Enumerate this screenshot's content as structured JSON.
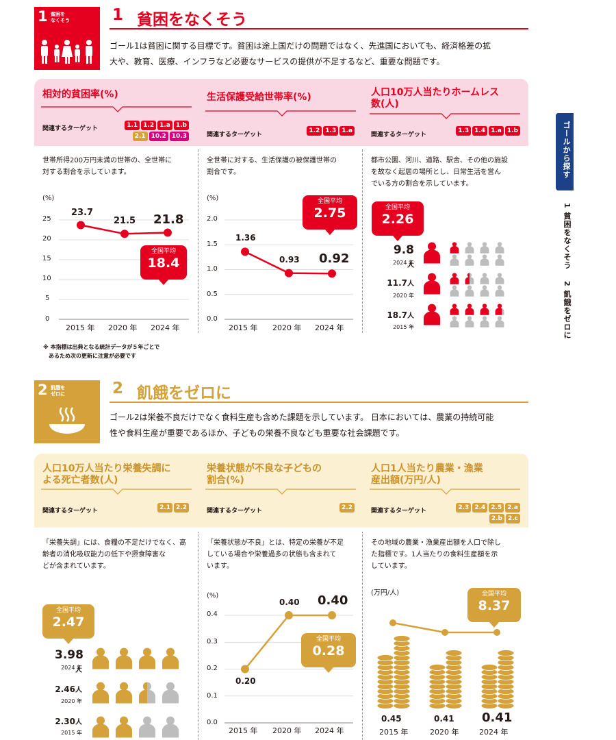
{
  "colors": {
    "red": "#e5001f",
    "pink_band": "#f9d7e3",
    "gold": "#d5a13a",
    "cream_band": "#fcf0d3",
    "gray": "#bdbdbd",
    "navy": "#1b4187"
  },
  "goal1": {
    "icon_number": "1",
    "icon_text": [
      "貧困を",
      "なくそう"
    ],
    "number": "1",
    "title": "貧困をなくそう",
    "description": [
      "ゴール1は貧困に関する目標です。貧困は途上国だけの問題ではなく、先進国においても、経済格差の拡",
      "大や、教育、医療、インフラなど必要なサービスの提供が不足するなど、重要な問題です。"
    ],
    "cards": [
      {
        "title": [
          "相対的貧困率(%)"
        ],
        "target_label": "関連するターゲット",
        "tags": [
          "1.1",
          "1.2",
          "1.a",
          "1.b",
          "2.1",
          "10.2",
          "10.3"
        ],
        "description": [
          "世帯所得200万円未満の世帯の、全世帯に",
          "対する割合を示しています。"
        ],
        "chart": {
          "unit": "(%)",
          "y_ticks": [
            "25",
            "20",
            "15",
            "10",
            "5",
            "0"
          ],
          "x_labels": [
            "2015 年",
            "2020 年",
            "2024 年"
          ],
          "value_labels": [
            "23.7",
            "21.5",
            "21.8"
          ],
          "avg_title": "全国平均",
          "avg_value": "18.4"
        }
      },
      {
        "title": [
          "生活保護受給世帯率(%)"
        ],
        "target_label": "関連するターゲット",
        "tags": [
          "1.2",
          "1.3",
          "1.a"
        ],
        "description": [
          "全世帯に対する、生活保護の被保護世帯の",
          "割合です。"
        ],
        "chart": {
          "unit": "(%)",
          "y_ticks": [
            "2.0",
            "1.5",
            "1.0",
            "0.5",
            "0.0"
          ],
          "x_labels": [
            "2015 年",
            "2020 年",
            "2024 年"
          ],
          "value_labels": [
            "1.36",
            "0.93",
            "0.92"
          ],
          "avg_title": "全国平均",
          "avg_value": "2.75"
        }
      },
      {
        "title": [
          "人口10万人当たりホームレス",
          "数(人)"
        ],
        "target_label": "関連するターゲット",
        "tags": [
          "1.3",
          "1.4",
          "1.a",
          "1.b"
        ],
        "description": [
          "都市公園、河川、道路、駅舎、その他の施設",
          "を故なく起居の場所とし、日常生活を営ん",
          "でいる方の割合を示しています。"
        ],
        "avg_title": "全国平均",
        "avg_value": "2.26",
        "pictos": [
          {
            "value": "9.8",
            "unit": "人",
            "year": "2024 年",
            "fill": 1.0
          },
          {
            "value": "11.7",
            "unit": "人",
            "year": "2020 年",
            "fill": 1.5
          },
          {
            "value": "18.7",
            "unit": "人",
            "year": "2015 年",
            "fill": 3.7
          }
        ]
      }
    ],
    "note": [
      "※ 本指標は出典となる統計データが５年ごとで",
      "　あるため次の更新に注意が必要です"
    ]
  },
  "goal2": {
    "icon_number": "2",
    "icon_text": [
      "飢餓を",
      "ゼロに"
    ],
    "number": "2",
    "title": "飢餓をゼロに",
    "description": [
      "ゴール2は栄養不良だけでなく食料生産も含めた課題を示しています。 日本においては、農業の持続可能",
      "性や食料生産が重要であるほか、子どもの栄養不良なども重要な社会課題です。"
    ],
    "cards": [
      {
        "title": [
          "人口10万人当たり栄養失調に",
          "よる死亡者数(人)"
        ],
        "target_label": "関連するターゲット",
        "tags": [
          "2.1",
          "2.2"
        ],
        "description": [
          "「栄養失調」には、食糧の不足だけでなく、高",
          "齢者の消化吸収能力の低下や摂食障害な",
          "どが含まれています。"
        ],
        "avg_title": "全国平均",
        "avg_value": "2.47",
        "pictos": [
          {
            "value": "3.98",
            "unit": "人",
            "year": "2024 年",
            "fill": 4.0
          },
          {
            "value": "2.46",
            "unit": "人",
            "year": "2020 年",
            "fill": 2.5
          },
          {
            "value": "2.30",
            "unit": "人",
            "year": "2015 年",
            "fill": 2.0
          }
        ]
      },
      {
        "title": [
          "栄養状態が不良な子どもの",
          "割合(%)"
        ],
        "target_label": "関連するターゲット",
        "tags": [
          "2.2"
        ],
        "description": [
          "「栄養状態が不良」とは、特定の栄養が不足",
          "している場合や栄養過多の状態も含まれて",
          "います。"
        ],
        "chart": {
          "unit": "(%)",
          "y_ticks": [
            "0.4",
            "0.3",
            "0.2",
            "0.1",
            "0.0"
          ],
          "x_labels": [
            "2015 年",
            "2020 年",
            "2024 年"
          ],
          "value_labels": [
            "0.20",
            "0.40",
            "0.40"
          ],
          "avg_title": "全国平均",
          "avg_value": "0.28"
        }
      },
      {
        "title": [
          "人口1人当たり農業・漁業",
          "産出額(万円/人)"
        ],
        "target_label": "関連するターゲット",
        "tags": [
          "2.3",
          "2.4",
          "2.5",
          "2.a",
          "2.b",
          "2.c"
        ],
        "description": [
          "その地域の農業・漁業産出額を人口で除し",
          "た指標です。1人当たりの食料生産額を示",
          "しています。"
        ],
        "chart": {
          "unit": "(万円/人)",
          "x_labels": [
            "2015 年",
            "2020 年",
            "2024 年"
          ],
          "value_labels": [
            "0.45",
            "0.41",
            "0.41"
          ],
          "avg_title": "全国平均",
          "avg_value": "8.37"
        }
      }
    ]
  },
  "side": {
    "tab_label": "ゴールから探す",
    "links": [
      "1 貧困をなくそう",
      "2 飢餓をゼロに"
    ]
  },
  "chart_data": [
    {
      "type": "line",
      "title": "相対的貧困率(%)",
      "ylabel": "(%)",
      "x": [
        "2015 年",
        "2020 年",
        "2024 年"
      ],
      "values": [
        23.7,
        21.5,
        21.8
      ],
      "ylim": [
        0,
        25
      ],
      "reference": 18.4
    },
    {
      "type": "line",
      "title": "生活保護受給世帯率(%)",
      "ylabel": "(%)",
      "x": [
        "2015 年",
        "2020 年",
        "2024 年"
      ],
      "values": [
        1.36,
        0.93,
        0.92
      ],
      "ylim": [
        0,
        2.0
      ],
      "reference": 2.75
    },
    {
      "type": "bar",
      "title": "人口10万人当たりホームレス数(人)",
      "x": [
        "2024 年",
        "2020 年",
        "2015 年"
      ],
      "values": [
        9.8,
        11.7,
        18.7
      ],
      "reference": 2.26
    },
    {
      "type": "bar",
      "title": "人口10万人当たり栄養失調による死亡者数(人)",
      "x": [
        "2024 年",
        "2020 年",
        "2015 年"
      ],
      "values": [
        3.98,
        2.46,
        2.3
      ],
      "reference": 2.47
    },
    {
      "type": "line",
      "title": "栄養状態が不良な子どもの割合(%)",
      "ylabel": "(%)",
      "x": [
        "2015 年",
        "2020 年",
        "2024 年"
      ],
      "values": [
        0.2,
        0.4,
        0.4
      ],
      "ylim": [
        0,
        0.4
      ],
      "reference": 0.28
    },
    {
      "type": "line",
      "title": "人口1人当たり農業・漁業産出額(万円/人)",
      "ylabel": "(万円/人)",
      "x": [
        "2015 年",
        "2020 年",
        "2024 年"
      ],
      "values": [
        0.45,
        0.41,
        0.41
      ],
      "reference": 8.37
    }
  ]
}
